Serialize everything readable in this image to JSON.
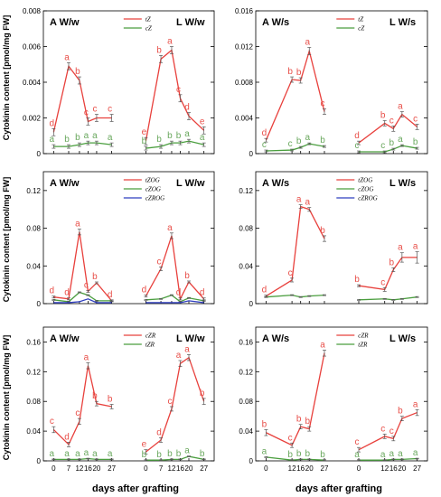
{
  "y_label": "Cytokinin content [pmol/mg FW]",
  "x_label": "days after grafting",
  "colors": {
    "red": "#e8403c",
    "green": "#4a9e3e",
    "blue": "#2f3fbf",
    "sig_red": "#e8504a",
    "sig_green": "#6aa85e"
  },
  "chart_data": [
    {
      "type": "line",
      "left_title": "A W/w",
      "right_title": "L W/w",
      "ylim": [
        0,
        0.008
      ],
      "yticks": [
        "0",
        "0.002",
        "0.004",
        "0.006",
        "0.008"
      ],
      "ytick_values": [
        0,
        0.002,
        0.004,
        0.006,
        0.008
      ],
      "x_ticks": [],
      "legend": [
        {
          "name": "tZ",
          "color": "red"
        },
        {
          "name": "cZ",
          "color": "green"
        }
      ],
      "series": [
        {
          "name": "tZ",
          "color": "red",
          "group": "left",
          "x": [
            0,
            7,
            12,
            16,
            20,
            27
          ],
          "values": [
            0.0012,
            0.0049,
            0.0041,
            0.0018,
            0.002,
            0.002
          ],
          "err": [
            0.0002,
            0.0002,
            0.0002,
            0.0002,
            0.0002,
            0.0002
          ],
          "labels": [
            "d",
            "a",
            "b",
            "c",
            "c",
            "c"
          ]
        },
        {
          "name": "tZ",
          "color": "red",
          "group": "right",
          "x": [
            0,
            7,
            12,
            16,
            20,
            27
          ],
          "values": [
            0.0007,
            0.0053,
            0.0058,
            0.0031,
            0.0021,
            0.0013
          ],
          "err": [
            0.0002,
            0.0002,
            0.0002,
            0.0002,
            0.0002,
            0.0002
          ],
          "labels": [
            "e",
            "b",
            "a",
            "c",
            "d",
            "e"
          ]
        },
        {
          "name": "cZ",
          "color": "green",
          "group": "left",
          "x": [
            0,
            7,
            12,
            16,
            20,
            27
          ],
          "values": [
            0.0004,
            0.0004,
            0.0005,
            0.0006,
            0.0006,
            0.0005
          ],
          "err": [
            0.0001,
            0.0001,
            0.0001,
            0.0001,
            0.0001,
            0.0001
          ],
          "labels": [
            "a",
            "b",
            "b",
            "a",
            "a",
            "a"
          ]
        },
        {
          "name": "cZ",
          "color": "green",
          "group": "right",
          "x": [
            0,
            7,
            12,
            16,
            20,
            27
          ],
          "values": [
            0.0003,
            0.0004,
            0.0006,
            0.0006,
            0.0007,
            0.0005
          ],
          "err": [
            0.0001,
            0.0001,
            0.0001,
            0.0001,
            0.0001,
            0.0001
          ],
          "labels": [
            "b",
            "b",
            "b",
            "b",
            "a",
            "a"
          ]
        }
      ]
    },
    {
      "type": "line",
      "left_title": "A W/s",
      "right_title": "L W/s",
      "ylim": [
        0,
        0.016
      ],
      "yticks": [
        "0",
        "0.004",
        "0.008",
        "0.012",
        "0.016"
      ],
      "ytick_values": [
        0,
        0.004,
        0.008,
        0.012,
        0.016
      ],
      "x_ticks": [],
      "legend": [
        {
          "name": "tZ",
          "color": "red"
        },
        {
          "name": "cZ",
          "color": "green"
        }
      ],
      "series": [
        {
          "name": "tZ",
          "color": "red",
          "group": "left",
          "x": [
            0,
            12,
            16,
            20,
            27
          ],
          "values": [
            0.0015,
            0.0083,
            0.0082,
            0.0115,
            0.0047
          ],
          "err": [
            0.0002,
            0.0003,
            0.0003,
            0.0004,
            0.0003
          ],
          "labels": [
            "d",
            "b",
            "b",
            "a",
            "c"
          ]
        },
        {
          "name": "tZ",
          "color": "red",
          "group": "right",
          "x": [
            0,
            12,
            16,
            20,
            27
          ],
          "values": [
            0.0012,
            0.0034,
            0.0028,
            0.0044,
            0.003
          ],
          "err": [
            0.0002,
            0.0003,
            0.0003,
            0.0003,
            0.0003
          ],
          "labels": [
            "d",
            "b",
            "c",
            "a",
            "c"
          ]
        },
        {
          "name": "cZ",
          "color": "green",
          "group": "left",
          "x": [
            0,
            12,
            16,
            20,
            27
          ],
          "values": [
            0.0003,
            0.0004,
            0.0007,
            0.0011,
            0.0008
          ],
          "err": [
            0.0001,
            0.0001,
            0.0001,
            0.0001,
            0.0001
          ],
          "labels": [
            "c",
            "c",
            "b",
            "a",
            "b"
          ]
        },
        {
          "name": "cZ",
          "color": "green",
          "group": "right",
          "x": [
            0,
            12,
            16,
            20,
            27
          ],
          "values": [
            0.0002,
            0.0002,
            0.0005,
            0.0009,
            0.0006
          ],
          "err": [
            0.0001,
            0.0001,
            0.0001,
            0.0001,
            0.0001
          ],
          "labels": [
            "c",
            "c",
            "b",
            "a",
            "b"
          ]
        }
      ]
    },
    {
      "type": "line",
      "left_title": "A W/w",
      "right_title": "L W/w",
      "ylim": [
        0,
        0.14
      ],
      "yticks": [
        "0",
        "0.04",
        "0.08",
        "0.12"
      ],
      "ytick_values": [
        0,
        0.04,
        0.08,
        0.12
      ],
      "x_ticks": [],
      "legend": [
        {
          "name": "tZOG",
          "color": "red"
        },
        {
          "name": "cZOG",
          "color": "green"
        },
        {
          "name": "cZROG",
          "color": "blue"
        }
      ],
      "series": [
        {
          "name": "tZOG",
          "color": "red",
          "group": "left",
          "x": [
            0,
            7,
            12,
            16,
            20,
            27
          ],
          "values": [
            0.007,
            0.005,
            0.076,
            0.013,
            0.022,
            0.003
          ],
          "err": [
            0.001,
            0.001,
            0.003,
            0.001,
            0.001,
            0.001
          ],
          "labels": [
            "d",
            "d",
            "a",
            "c",
            "b",
            "d"
          ]
        },
        {
          "name": "tZOG",
          "color": "red",
          "group": "right",
          "x": [
            0,
            7,
            12,
            16,
            20,
            27
          ],
          "values": [
            0.008,
            0.037,
            0.072,
            0.005,
            0.023,
            0.005
          ],
          "err": [
            0.001,
            0.002,
            0.003,
            0.001,
            0.001,
            0.001
          ],
          "labels": [
            "d",
            "c",
            "a",
            "d",
            "b",
            "d"
          ]
        },
        {
          "name": "cZOG",
          "color": "green",
          "group": "left",
          "x": [
            0,
            7,
            12,
            16,
            20,
            27
          ],
          "values": [
            0.004,
            0.002,
            0.012,
            0.009,
            0.003,
            0.003
          ],
          "err": [
            0.0005,
            0.0005,
            0.0005,
            0.0005,
            0.0005,
            0.0005
          ],
          "labels": []
        },
        {
          "name": "cZOG",
          "color": "green",
          "group": "right",
          "x": [
            0,
            7,
            12,
            16,
            20,
            27
          ],
          "values": [
            0.004,
            0.005,
            0.009,
            0.002,
            0.006,
            0.003
          ],
          "err": [
            0.0005,
            0.0005,
            0.0005,
            0.0005,
            0.0005,
            0.0005
          ],
          "labels": []
        },
        {
          "name": "cZROG",
          "color": "blue",
          "group": "left",
          "x": [
            0,
            7,
            12,
            16,
            20,
            27
          ],
          "values": [
            0.001,
            0.001,
            0.002,
            0.005,
            0.001,
            0.001
          ],
          "err": [
            0,
            0,
            0,
            0,
            0,
            0
          ],
          "labels": []
        },
        {
          "name": "cZROG",
          "color": "blue",
          "group": "right",
          "x": [
            0,
            7,
            12,
            16,
            20,
            27
          ],
          "values": [
            0.001,
            0.001,
            0.001,
            0.001,
            0.003,
            0.001
          ],
          "err": [
            0,
            0,
            0,
            0,
            0,
            0
          ],
          "labels": []
        }
      ]
    },
    {
      "type": "line",
      "left_title": "A W/s",
      "right_title": "L W/s",
      "ylim": [
        0,
        0.14
      ],
      "yticks": [
        "0",
        "0.04",
        "0.08",
        "0.12"
      ],
      "ytick_values": [
        0,
        0.04,
        0.08,
        0.12
      ],
      "x_ticks": [],
      "legend": [
        {
          "name": "tZOG",
          "color": "red"
        },
        {
          "name": "cZOG",
          "color": "green"
        },
        {
          "name": "cZROG",
          "color": "blue"
        }
      ],
      "series": [
        {
          "name": "tZOG",
          "color": "red",
          "group": "left",
          "x": [
            0,
            12,
            16,
            20,
            27
          ],
          "values": [
            0.008,
            0.025,
            0.103,
            0.1,
            0.069
          ],
          "err": [
            0.001,
            0.002,
            0.002,
            0.002,
            0.003
          ],
          "labels": [
            "d",
            "c",
            "a",
            "a",
            "b"
          ]
        },
        {
          "name": "tZOG",
          "color": "red",
          "group": "right",
          "x": [
            0,
            12,
            16,
            20,
            27
          ],
          "values": [
            0.019,
            0.015,
            0.036,
            0.049,
            0.049
          ],
          "err": [
            0.001,
            0.002,
            0.002,
            0.005,
            0.006
          ],
          "labels": [
            "b",
            "c",
            "b",
            "a",
            "a"
          ]
        },
        {
          "name": "cZOG",
          "color": "green",
          "group": "left",
          "x": [
            0,
            12,
            16,
            20,
            27
          ],
          "values": [
            0.007,
            0.009,
            0.007,
            0.008,
            0.009
          ],
          "err": [
            0.0005,
            0.0005,
            0.0005,
            0.0005,
            0.0005
          ],
          "labels": []
        },
        {
          "name": "cZOG",
          "color": "green",
          "group": "right",
          "x": [
            0,
            12,
            16,
            20,
            27
          ],
          "values": [
            0.004,
            0.005,
            0.004,
            0.005,
            0.007
          ],
          "err": [
            0.0005,
            0.0005,
            0.0005,
            0.0005,
            0.0005
          ],
          "labels": []
        }
      ]
    },
    {
      "type": "line",
      "left_title": "A W/w",
      "right_title": "L W/w",
      "ylim": [
        0,
        0.18
      ],
      "yticks": [
        "0",
        "0.04",
        "0.08",
        "0.12",
        "0.16"
      ],
      "ytick_values": [
        0,
        0.04,
        0.08,
        0.12,
        0.16
      ],
      "x_ticks": [
        "0",
        "7",
        "12",
        "16",
        "20",
        "27"
      ],
      "legend": [
        {
          "name": "cZR",
          "color": "red"
        },
        {
          "name": "tZR",
          "color": "green"
        }
      ],
      "series": [
        {
          "name": "cZR",
          "color": "red",
          "group": "left",
          "x": [
            0,
            7,
            12,
            16,
            20,
            27
          ],
          "values": [
            0.042,
            0.022,
            0.053,
            0.128,
            0.077,
            0.073
          ],
          "err": [
            0.004,
            0.003,
            0.004,
            0.004,
            0.003,
            0.003
          ],
          "labels": [
            "c",
            "d",
            "c",
            "a",
            "b",
            "b"
          ]
        },
        {
          "name": "cZR",
          "color": "red",
          "group": "right",
          "x": [
            0,
            7,
            12,
            16,
            20,
            27
          ],
          "values": [
            0.012,
            0.028,
            0.07,
            0.131,
            0.139,
            0.08
          ],
          "err": [
            0.003,
            0.003,
            0.003,
            0.004,
            0.004,
            0.004
          ],
          "labels": [
            "e",
            "d",
            "c",
            "a",
            "a",
            "b"
          ]
        },
        {
          "name": "tZR",
          "color": "green",
          "group": "left",
          "x": [
            0,
            7,
            12,
            16,
            20,
            27
          ],
          "values": [
            0.002,
            0.002,
            0.002,
            0.003,
            0.002,
            0.002
          ],
          "err": [
            0.0005,
            0.0005,
            0.0005,
            0.0005,
            0.0005,
            0.0005
          ],
          "labels": [
            "a",
            "a",
            "a",
            "a",
            "a",
            "a"
          ]
        },
        {
          "name": "tZR",
          "color": "green",
          "group": "right",
          "x": [
            0,
            7,
            12,
            16,
            20,
            27
          ],
          "values": [
            0.001,
            0.001,
            0.002,
            0.002,
            0.006,
            0.002
          ],
          "err": [
            0.0005,
            0.0005,
            0.0005,
            0.0005,
            0.0005,
            0.0005
          ],
          "labels": [
            "b",
            "b",
            "b",
            "b",
            "a",
            "b"
          ]
        }
      ]
    },
    {
      "type": "line",
      "left_title": "A W/s",
      "right_title": "L W/s",
      "ylim": [
        0,
        0.18
      ],
      "yticks": [
        "0",
        "0.04",
        "0.08",
        "0.12",
        "0.16"
      ],
      "ytick_values": [
        0,
        0.04,
        0.08,
        0.12,
        0.16
      ],
      "x_ticks": [
        "0",
        "12",
        "16",
        "20",
        "27"
      ],
      "legend": [
        {
          "name": "cZR",
          "color": "red"
        },
        {
          "name": "tZR",
          "color": "green"
        }
      ],
      "series": [
        {
          "name": "cZR",
          "color": "red",
          "group": "left",
          "x": [
            0,
            12,
            16,
            20,
            27
          ],
          "values": [
            0.038,
            0.021,
            0.046,
            0.043,
            0.145
          ],
          "err": [
            0.004,
            0.003,
            0.003,
            0.003,
            0.004
          ],
          "labels": [
            "b",
            "c",
            "b",
            "b",
            "a"
          ]
        },
        {
          "name": "cZR",
          "color": "red",
          "group": "right",
          "x": [
            0,
            12,
            16,
            20,
            27
          ],
          "values": [
            0.015,
            0.033,
            0.03,
            0.057,
            0.065
          ],
          "err": [
            0.003,
            0.003,
            0.003,
            0.003,
            0.004
          ],
          "labels": [
            "c",
            "c",
            "c",
            "b",
            "a"
          ]
        },
        {
          "name": "tZR",
          "color": "green",
          "group": "left",
          "x": [
            0,
            12,
            16,
            20,
            27
          ],
          "values": [
            0.005,
            0.001,
            0.002,
            0.002,
            0.001
          ],
          "err": [
            0.0005,
            0.0005,
            0.0005,
            0.0005,
            0.0005
          ],
          "labels": [
            "a",
            "b",
            "b",
            "b",
            "b"
          ]
        },
        {
          "name": "tZR",
          "color": "green",
          "group": "right",
          "x": [
            0,
            12,
            16,
            20,
            27
          ],
          "values": [
            0.001,
            0.001,
            0.002,
            0.002,
            0.003
          ],
          "err": [
            0.0005,
            0.0005,
            0.0005,
            0.0005,
            0.0005
          ],
          "labels": [
            "a",
            "a",
            "a",
            "a",
            "a"
          ]
        }
      ]
    }
  ]
}
